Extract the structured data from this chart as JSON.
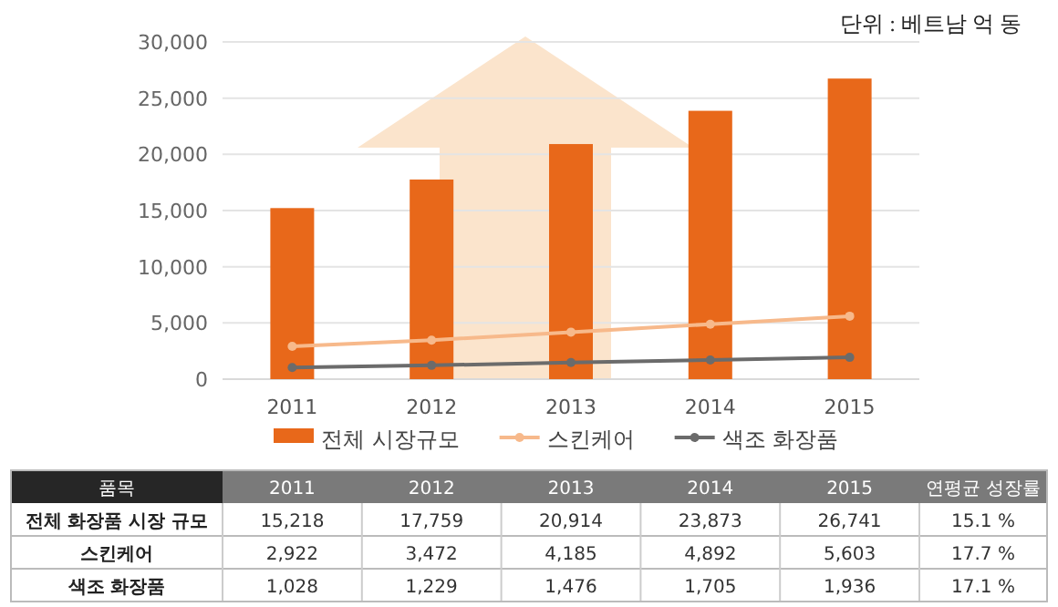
{
  "chart_data": {
    "type": "bar",
    "categories": [
      "2011",
      "2012",
      "2013",
      "2014",
      "2015"
    ],
    "series": [
      {
        "name": "전체 시장규모",
        "color": "#e8681a",
        "values": [
          15218,
          17759,
          20914,
          23873,
          26741
        ],
        "value_labels": [
          "15,218",
          "17,759",
          "20,914",
          "23,873",
          "26,741"
        ]
      },
      {
        "name": "스킨케어",
        "type": "line",
        "color": "#f7b98b",
        "values": [
          2922,
          3472,
          4185,
          4892,
          5603
        ],
        "value_labels": [
          "2,922",
          "3,472",
          "4,185",
          "4,892",
          "5,603"
        ]
      },
      {
        "name": "색조 화장품",
        "type": "line",
        "color": "#6b6b6b",
        "values": [
          1028,
          1229,
          1476,
          1705,
          1936
        ],
        "value_labels": [
          "1,028",
          "1,229",
          "1,476",
          "1,705",
          "1,936"
        ]
      }
    ],
    "ylim": [
      0,
      30000
    ],
    "yticks": [
      {
        "value": 0,
        "label": "0"
      },
      {
        "value": 5000,
        "label": "5,000"
      },
      {
        "value": 10000,
        "label": "10,000"
      },
      {
        "value": 15000,
        "label": "15,000"
      },
      {
        "value": 20000,
        "label": "20,000"
      },
      {
        "value": 25000,
        "label": "25,000"
      },
      {
        "value": 30000,
        "label": "30,000"
      }
    ],
    "grid": "y",
    "legend": "bottom",
    "marker": "circle",
    "annotations": [
      "단위 : 베트남 억 동",
      "품목",
      "연평균 성장률",
      "전체 화장품 시장 규모",
      "스킨케어",
      "색조 화장품",
      "15.1 %",
      "17.7 %",
      "17.1 %"
    ]
  }
}
